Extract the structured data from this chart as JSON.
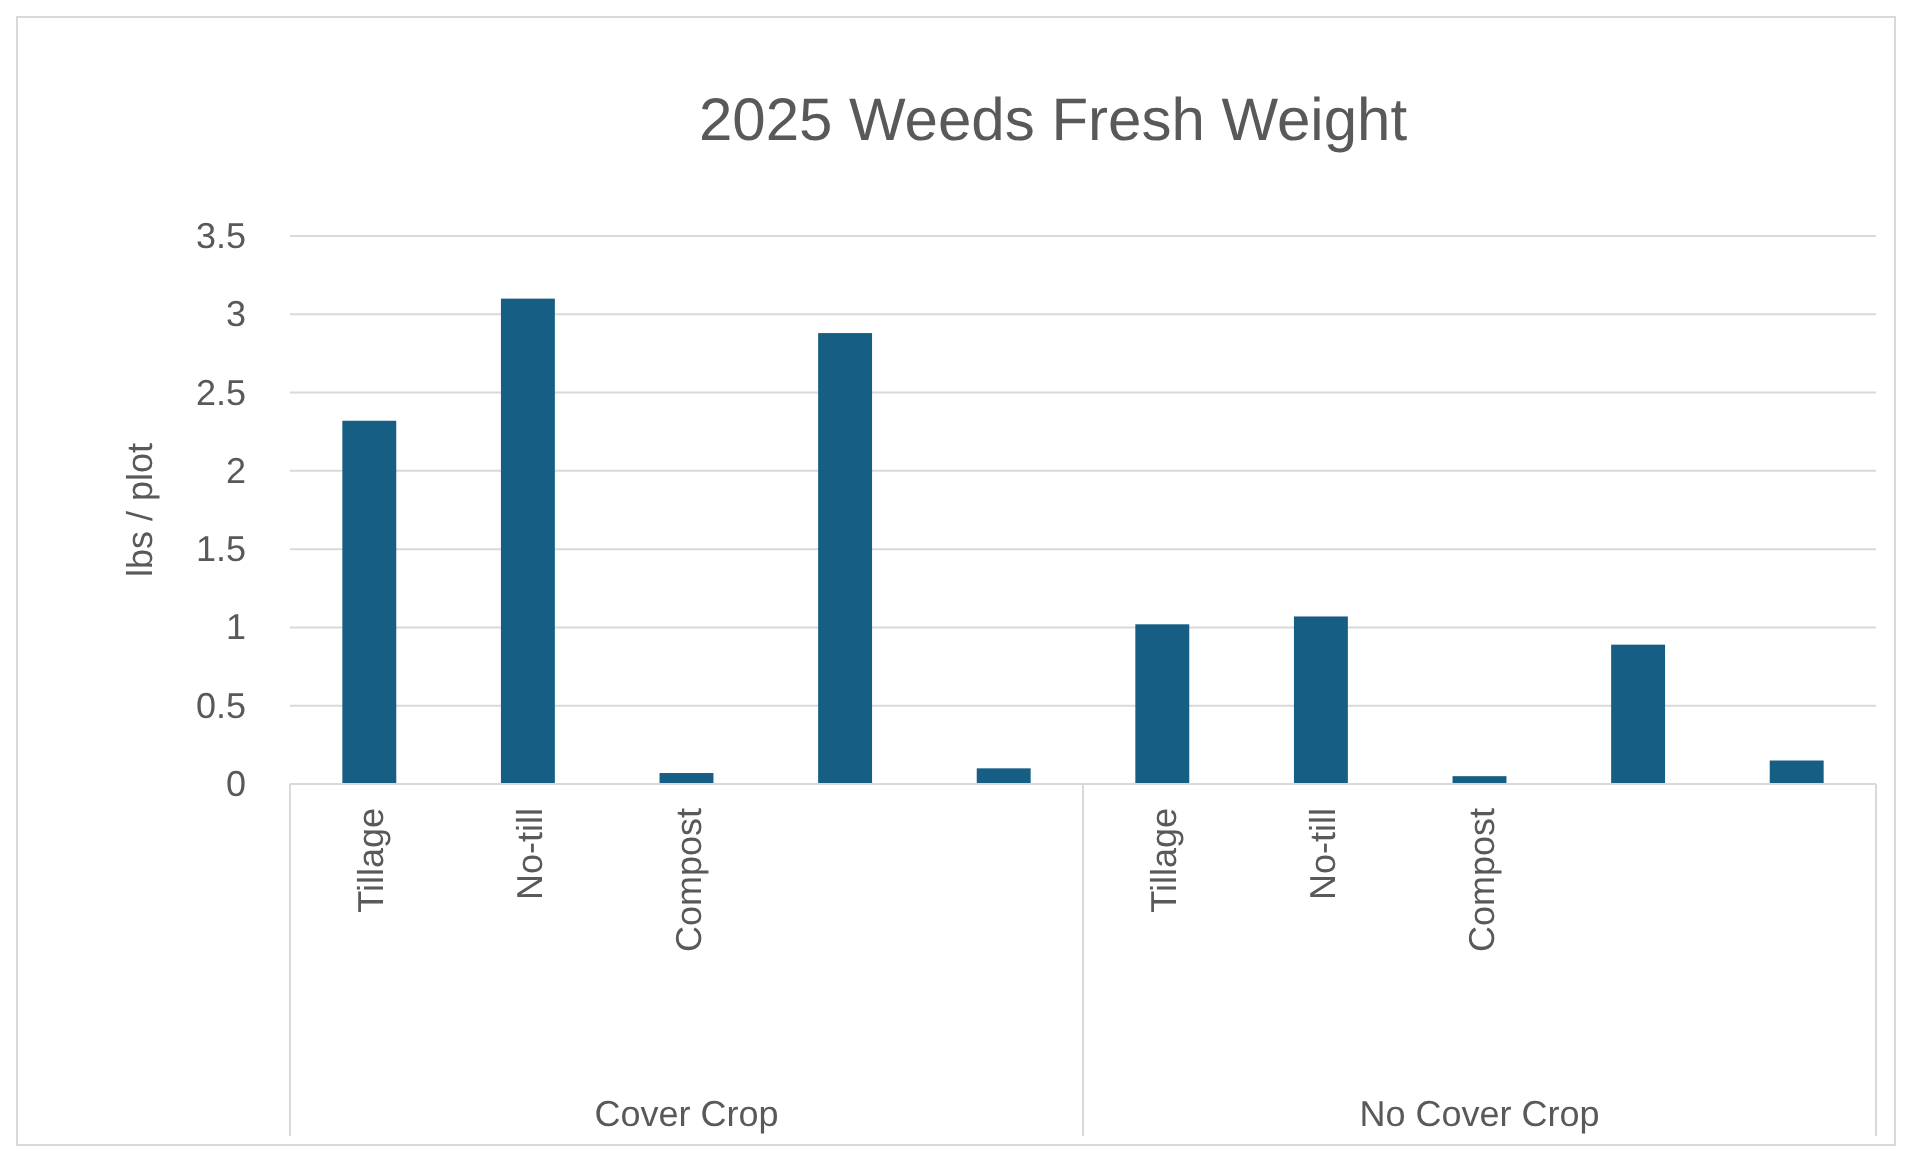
{
  "chart_data": {
    "type": "bar",
    "title": "2025 Weeds Fresh Weight",
    "ylabel": "lbs / plot",
    "categories": [
      "Tillage",
      "No-till",
      "Compost",
      null,
      null,
      "Tillage",
      "No-till",
      "Compost",
      null,
      null
    ],
    "annotations": [
      "Cover Crop",
      "No Cover Crop"
    ],
    "values": [
      2.32,
      3.1,
      0.07,
      2.88,
      0.1,
      1.02,
      1.07,
      0.05,
      0.89,
      0.15
    ],
    "color": "#165e83",
    "ylim": [
      0,
      3.5
    ],
    "yticks": [
      0,
      0.5,
      1,
      1.5,
      2,
      2.5,
      3,
      3.5
    ],
    "grid": "y"
  }
}
